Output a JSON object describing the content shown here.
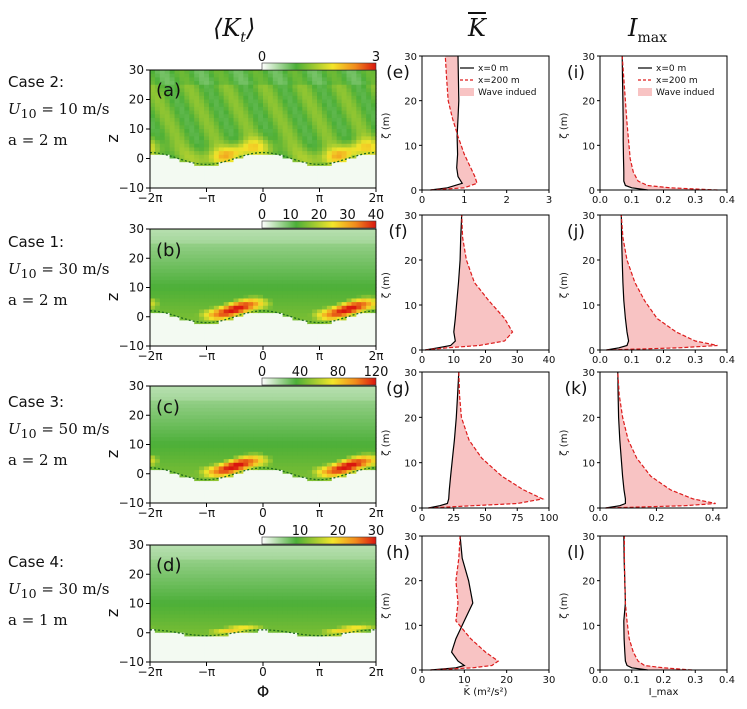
{
  "headers": {
    "col1": "⟨K",
    "col1_sub": "t",
    "col1_close": "⟩",
    "col2": "K",
    "col3": "I",
    "col3_sub": "max"
  },
  "cases": [
    {
      "id": "case2",
      "label": "Case 2:",
      "u10": "U",
      "u10_sub": "10",
      "u10_val": " = 10 m/s",
      "a": "a = 2 m"
    },
    {
      "id": "case1",
      "label": "Case 1:",
      "u10": "U",
      "u10_sub": "10",
      "u10_val": " = 30 m/s",
      "a": "a = 2 m"
    },
    {
      "id": "case3",
      "label": "Case 3:",
      "u10": "U",
      "u10_sub": "10",
      "u10_val": " = 50 m/s",
      "a": "a = 2 m"
    },
    {
      "id": "case4",
      "label": "Case 4:",
      "u10": "U",
      "u10_sub": "10",
      "u10_val": " = 30 m/s",
      "a": "a = 1 m"
    }
  ],
  "colors": {
    "fill": "#f8c3c3",
    "red": "#dd1c1c",
    "black": "#000000",
    "trough": "#2e8b2e"
  },
  "chart_data": [
    {
      "type": "heatmap",
      "panel": "(a)",
      "title": "⟨K_t⟩ case 2",
      "xlabel": "",
      "ylabel": "z",
      "xticks": [
        "−2π",
        "−π",
        "0",
        "π",
        "2π"
      ],
      "xlim": [
        -6.283,
        6.283
      ],
      "yticks": [
        "−10",
        "0",
        "10",
        "20",
        "30"
      ],
      "ylim": [
        -10,
        30
      ],
      "colorbar": {
        "ticks": [
          "0",
          "3"
        ],
        "range": [
          0,
          3
        ]
      },
      "wave_amplitude_m": 2,
      "peak_value": 2.2,
      "peak_height_m": 4
    },
    {
      "type": "heatmap",
      "panel": "(b)",
      "title": "⟨K_t⟩ case 1",
      "xlabel": "",
      "ylabel": "z",
      "xticks": [
        "−2π",
        "−π",
        "0",
        "π",
        "2π"
      ],
      "xlim": [
        -6.283,
        6.283
      ],
      "yticks": [
        "−10",
        "0",
        "10",
        "20",
        "30"
      ],
      "ylim": [
        -10,
        30
      ],
      "colorbar": {
        "ticks": [
          "0",
          "10",
          "20",
          "30",
          "40"
        ],
        "range": [
          0,
          40
        ]
      },
      "wave_amplitude_m": 2,
      "peak_value": 38,
      "peak_height_m": 5
    },
    {
      "type": "heatmap",
      "panel": "(c)",
      "title": "⟨K_t⟩ case 3",
      "xlabel": "",
      "ylabel": "z",
      "xticks": [
        "−2π",
        "−π",
        "0",
        "π",
        "2π"
      ],
      "xlim": [
        -6.283,
        6.283
      ],
      "yticks": [
        "−10",
        "0",
        "10",
        "20",
        "30"
      ],
      "ylim": [
        -10,
        30
      ],
      "colorbar": {
        "ticks": [
          "0",
          "40",
          "80",
          "120"
        ],
        "range": [
          0,
          120
        ]
      },
      "wave_amplitude_m": 2,
      "peak_value": 115,
      "peak_height_m": 5
    },
    {
      "type": "heatmap",
      "panel": "(d)",
      "title": "⟨K_t⟩ case 4",
      "xlabel": "Φ",
      "ylabel": "z",
      "xticks": [
        "−2π",
        "−π",
        "0",
        "π",
        "2π"
      ],
      "xlim": [
        -6.283,
        6.283
      ],
      "yticks": [
        "−10",
        "0",
        "10",
        "20",
        "30"
      ],
      "ylim": [
        -10,
        30
      ],
      "colorbar": {
        "ticks": [
          "0",
          "10",
          "20",
          "30"
        ],
        "range": [
          0,
          30
        ]
      },
      "wave_amplitude_m": 1,
      "peak_value": 18,
      "peak_height_m": 2
    },
    {
      "type": "line",
      "panel": "(e)",
      "xlabel": "",
      "ylabel": "ζ (m)",
      "xlim": [
        0,
        3
      ],
      "ylim": [
        0,
        30
      ],
      "xticks": [
        "0",
        "1",
        "2",
        "3"
      ],
      "yticks": [
        "0",
        "10",
        "20",
        "30"
      ],
      "legend": [
        "x=0 m",
        "x=200 m",
        "Wave indued"
      ],
      "legend_position": "top-right",
      "series": [
        {
          "name": "x=0 m",
          "x": [
            0.2,
            0.6,
            0.95,
            0.85,
            0.82,
            0.84,
            0.83,
            0.85,
            0.87,
            0.86,
            0.85
          ],
          "y": [
            0,
            0.5,
            1.5,
            3,
            5,
            8,
            12,
            16,
            20,
            25,
            30
          ]
        },
        {
          "name": "x=200 m",
          "x": [
            0.2,
            1.0,
            1.3,
            1.25,
            1.15,
            1.0,
            0.85,
            0.72,
            0.62,
            0.58,
            0.55
          ],
          "y": [
            0,
            0.5,
            1.5,
            3,
            5,
            8,
            12,
            16,
            20,
            25,
            30
          ]
        }
      ]
    },
    {
      "type": "line",
      "panel": "(f)",
      "xlabel": "",
      "ylabel": "ζ (m)",
      "xlim": [
        0,
        40
      ],
      "ylim": [
        0,
        30
      ],
      "xticks": [
        "0",
        "10",
        "20",
        "30",
        "40"
      ],
      "yticks": [
        "0",
        "10",
        "20",
        "30"
      ],
      "series": [
        {
          "name": "x=0 m",
          "x": [
            1,
            5,
            9,
            10.5,
            10,
            10.5,
            11,
            11.5,
            12,
            12.2,
            12.5
          ],
          "y": [
            0,
            0.5,
            1,
            2,
            4,
            7,
            11,
            15,
            20,
            25,
            30
          ]
        },
        {
          "name": "x=200 m",
          "x": [
            1,
            8,
            18,
            26,
            28.5,
            26,
            21,
            16.5,
            14,
            12.8,
            12.5
          ],
          "y": [
            0,
            0.5,
            1,
            2,
            4,
            7,
            11,
            15,
            20,
            25,
            30
          ]
        }
      ]
    },
    {
      "type": "line",
      "panel": "(g)",
      "xlabel": "",
      "ylabel": "ζ (m)",
      "xlim": [
        0,
        100
      ],
      "ylim": [
        0,
        30
      ],
      "xticks": [
        "0",
        "25",
        "50",
        "75",
        "100"
      ],
      "yticks": [
        "0",
        "10",
        "20",
        "30"
      ],
      "series": [
        {
          "name": "x=0 m",
          "x": [
            5,
            14,
            20,
            21,
            21.5,
            22.5,
            24,
            25.5,
            27,
            28,
            29
          ],
          "y": [
            0,
            0.5,
            1,
            2,
            4,
            7,
            11,
            15,
            20,
            25,
            30
          ]
        },
        {
          "name": "x=200 m",
          "x": [
            5,
            40,
            75,
            95,
            80,
            63,
            47,
            37,
            31,
            29.5,
            29
          ],
          "y": [
            0,
            0.5,
            1,
            2,
            4,
            7,
            11,
            15,
            20,
            25,
            30
          ]
        }
      ]
    },
    {
      "type": "line",
      "panel": "(h)",
      "xlabel": "K̄ (m²/s²)",
      "ylabel": "ζ (m)",
      "xlim": [
        0,
        30
      ],
      "ylim": [
        0,
        30
      ],
      "xticks": [
        "0",
        "10",
        "20",
        "30"
      ],
      "yticks": [
        "0",
        "10",
        "20",
        "30"
      ],
      "series": [
        {
          "name": "x=0 m",
          "x": [
            2,
            8,
            10,
            8.5,
            7,
            8,
            10,
            12,
            11,
            9.5,
            9
          ],
          "y": [
            0,
            0.5,
            1,
            2,
            4,
            7,
            11,
            15,
            20,
            25,
            30
          ]
        },
        {
          "name": "x=200 m",
          "x": [
            2,
            12,
            16.5,
            18,
            15,
            11.5,
            8,
            8.5,
            8,
            8.7,
            9
          ],
          "y": [
            0,
            0.5,
            1,
            2,
            4,
            7,
            11,
            15,
            20,
            25,
            30
          ]
        }
      ]
    },
    {
      "type": "line",
      "panel": "(i)",
      "xlabel": "",
      "ylabel": "ζ (m)",
      "xlim": [
        0,
        0.4
      ],
      "ylim": [
        0,
        30
      ],
      "xticks": [
        "0.0",
        "0.1",
        "0.2",
        "0.3",
        "0.4"
      ],
      "yticks": [
        "0",
        "10",
        "20",
        "30"
      ],
      "legend": [
        "x=0 m",
        "x=200 m",
        "Wave indued"
      ],
      "legend_position": "top-right",
      "series": [
        {
          "name": "x=0 m",
          "x": [
            0.15,
            0.1,
            0.08,
            0.075,
            0.075,
            0.074,
            0.073,
            0.073,
            0.072,
            0.071,
            0.07
          ],
          "y": [
            0,
            0.5,
            1,
            2,
            4,
            7,
            11,
            15,
            20,
            25,
            30
          ]
        },
        {
          "name": "x=200 m",
          "x": [
            0.37,
            0.22,
            0.15,
            0.12,
            0.105,
            0.095,
            0.09,
            0.085,
            0.08,
            0.075,
            0.07
          ],
          "y": [
            0,
            0.5,
            1,
            2,
            4,
            7,
            11,
            15,
            20,
            25,
            30
          ]
        }
      ]
    },
    {
      "type": "line",
      "panel": "(j)",
      "xlabel": "",
      "ylabel": "ζ (m)",
      "xlim": [
        0,
        0.4
      ],
      "ylim": [
        0,
        30
      ],
      "xticks": [
        "0.0",
        "0.1",
        "0.2",
        "0.3",
        "0.4"
      ],
      "yticks": [
        "0",
        "10",
        "20",
        "30"
      ],
      "series": [
        {
          "name": "x=0 m",
          "x": [
            0.02,
            0.06,
            0.085,
            0.09,
            0.085,
            0.08,
            0.075,
            0.072,
            0.07,
            0.068,
            0.067
          ],
          "y": [
            0,
            0.5,
            1,
            2,
            4,
            7,
            11,
            15,
            20,
            25,
            30
          ]
        },
        {
          "name": "x=200 m",
          "x": [
            0.02,
            0.25,
            0.37,
            0.3,
            0.24,
            0.18,
            0.14,
            0.11,
            0.085,
            0.072,
            0.067
          ],
          "y": [
            0,
            0.5,
            1,
            2,
            4,
            7,
            11,
            15,
            20,
            25,
            30
          ]
        }
      ]
    },
    {
      "type": "line",
      "panel": "(k)",
      "xlabel": "",
      "ylabel": "ζ (m)",
      "xlim": [
        0,
        0.45
      ],
      "ylim": [
        0,
        30
      ],
      "xticks": [
        "0.0",
        "0.2",
        "0.4"
      ],
      "yticks": [
        "0",
        "10",
        "20",
        "30"
      ],
      "series": [
        {
          "name": "x=0 m",
          "x": [
            0.02,
            0.07,
            0.09,
            0.09,
            0.085,
            0.08,
            0.075,
            0.07,
            0.066,
            0.064,
            0.063
          ],
          "y": [
            0,
            0.5,
            1,
            2,
            4,
            7,
            11,
            15,
            20,
            25,
            30
          ]
        },
        {
          "name": "x=200 m",
          "x": [
            0.02,
            0.3,
            0.41,
            0.33,
            0.25,
            0.18,
            0.13,
            0.1,
            0.08,
            0.068,
            0.063
          ],
          "y": [
            0,
            0.5,
            1,
            2,
            4,
            7,
            11,
            15,
            20,
            25,
            30
          ]
        }
      ]
    },
    {
      "type": "line",
      "panel": "(l)",
      "xlabel": "I_max",
      "ylabel": "ζ (m)",
      "xlim": [
        0,
        0.4
      ],
      "ylim": [
        0,
        30
      ],
      "xticks": [
        "0.0",
        "0.1",
        "0.2",
        "0.3",
        "0.4"
      ],
      "yticks": [
        "0",
        "10",
        "20",
        "30"
      ],
      "series": [
        {
          "name": "x=0 m",
          "x": [
            0.15,
            0.1,
            0.085,
            0.08,
            0.078,
            0.076,
            0.075,
            0.08,
            0.078,
            0.076,
            0.075
          ],
          "y": [
            0,
            0.5,
            1,
            2,
            4,
            7,
            11,
            15,
            20,
            25,
            30
          ]
        },
        {
          "name": "x=200 m",
          "x": [
            0.29,
            0.2,
            0.14,
            0.12,
            0.105,
            0.092,
            0.085,
            0.08,
            0.078,
            0.077,
            0.077
          ],
          "y": [
            0,
            0.5,
            1,
            2,
            4,
            7,
            11,
            15,
            20,
            25,
            30
          ]
        }
      ]
    }
  ]
}
